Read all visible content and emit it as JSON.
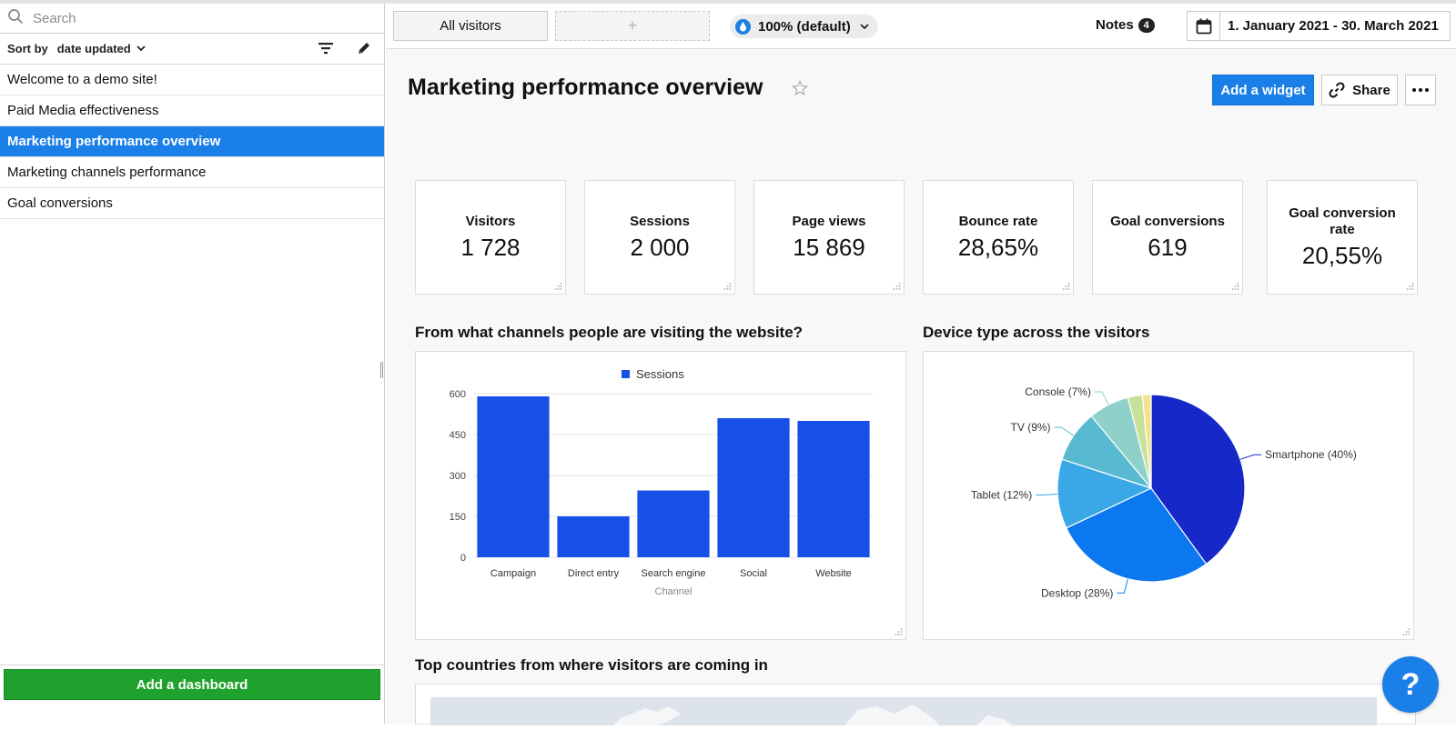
{
  "sidebar": {
    "search_placeholder": "Search",
    "sort_label": "Sort by",
    "sort_value": "date updated",
    "dashboards": [
      {
        "label": "Welcome to a demo site!",
        "active": false
      },
      {
        "label": "Paid Media effectiveness",
        "active": false
      },
      {
        "label": "Marketing performance overview",
        "active": true
      },
      {
        "label": "Marketing channels performance",
        "active": false
      },
      {
        "label": "Goal conversions",
        "active": false
      }
    ],
    "add_dashboard_label": "Add a dashboard"
  },
  "toolbar": {
    "segment_all": "All visitors",
    "segment_add": "+",
    "zoom_label": "100% (default)",
    "notes_label": "Notes",
    "notes_count": "4",
    "date_range": "1. January 2021 - 30. March 2021"
  },
  "page": {
    "title": "Marketing performance overview",
    "add_widget_label": "Add a widget",
    "share_label": "Share"
  },
  "kpis": [
    {
      "label": "Visitors",
      "value": "1 728"
    },
    {
      "label": "Sessions",
      "value": "2 000"
    },
    {
      "label": "Page views",
      "value": "15 869"
    },
    {
      "label": "Bounce rate",
      "value": "28,65%"
    },
    {
      "label": "Goal conversions",
      "value": "619"
    },
    {
      "label": "Goal conversion rate",
      "value": "20,55%"
    }
  ],
  "sections": {
    "channels_title": "From what channels people are visiting the website?",
    "devices_title": "Device type across the visitors",
    "countries_title": "Top countries from where visitors are coming in"
  },
  "colors": {
    "accent": "#1a7fe6",
    "add_dashboard": "#1fa22d",
    "bar": "#1650e6"
  },
  "chart_data": [
    {
      "type": "bar",
      "categories": [
        "Campaign",
        "Direct entry",
        "Search engine",
        "Social",
        "Website"
      ],
      "series": [
        {
          "name": "Sessions",
          "values": [
            590,
            150,
            245,
            510,
            500
          ]
        }
      ],
      "xlabel": "Channel",
      "ylabel": "",
      "ylim": [
        0,
        600
      ],
      "yticks": [
        0,
        150,
        300,
        450,
        600
      ],
      "legend": "top-center",
      "grid": true
    },
    {
      "type": "pie",
      "slices": [
        {
          "label": "Smartphone (40%)",
          "value": 40,
          "color": "#1728c9"
        },
        {
          "label": "Desktop (28%)",
          "value": 28,
          "color": "#0b78f0"
        },
        {
          "label": "Tablet (12%)",
          "value": 12,
          "color": "#3aa8e6"
        },
        {
          "label": "TV (9%)",
          "value": 9,
          "color": "#58bad0"
        },
        {
          "label": "Console (7%)",
          "value": 7,
          "color": "#8ed1c9"
        },
        {
          "label": "",
          "value": 2.5,
          "color": "#c8e09a"
        },
        {
          "label": "",
          "value": 1.5,
          "color": "#f2e18e"
        }
      ]
    }
  ]
}
